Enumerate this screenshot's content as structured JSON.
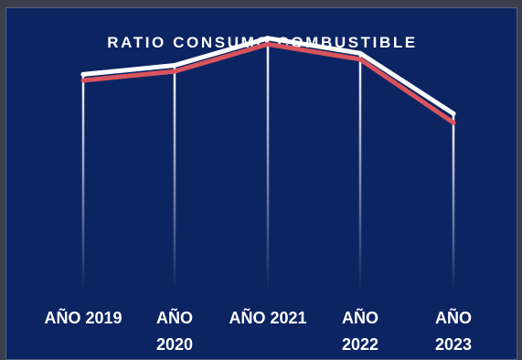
{
  "chart_data": {
    "type": "line",
    "title": "RATIO CONSUMO COMBUSTIBLE",
    "categories": [
      "AÑO 2019",
      "AÑO 2020",
      "AÑO 2021",
      "AÑO 2022",
      "AÑO 2023"
    ],
    "tick_lines": [
      [
        "AÑO 2019"
      ],
      [
        "AÑO",
        "2020"
      ],
      [
        "AÑO 2021"
      ],
      [
        "AÑO",
        "2022"
      ],
      [
        "AÑO",
        "2023"
      ]
    ],
    "series": [
      {
        "values": [
          0.72,
          0.75,
          0.84,
          0.79,
          0.59
        ],
        "color": "#ffffff"
      },
      {
        "values": [
          0.7,
          0.73,
          0.82,
          0.77,
          0.56
        ],
        "color": "#d9545c"
      }
    ],
    "ylim": [
      0,
      1
    ],
    "grid": false
  }
}
